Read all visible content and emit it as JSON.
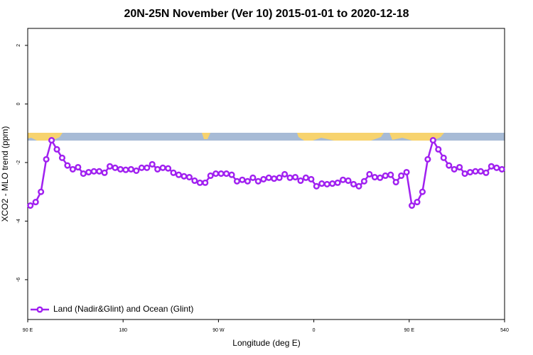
{
  "chart_data": {
    "type": "line",
    "title": "20N-25N November (Ver 10)   2015-01-01 to 2020-12-18",
    "x_label": "Longitude (deg E)",
    "y_label": "XCO2 - MLO trend (ppm)",
    "xlim": [
      90,
      540
    ],
    "xticks": [
      {
        "value": 90,
        "label": "90 E"
      },
      180,
      {
        "value": 270,
        "label": "90 W"
      },
      {
        "value": 360,
        "label": "0"
      },
      {
        "value": 450,
        "label": "90 E"
      },
      540
    ],
    "ylim": [
      -7.36,
      2.58
    ],
    "yticks": [
      -6,
      -4,
      -2,
      0,
      2
    ],
    "legend_position": "bottom-left",
    "x": [
      92.5,
      97.5,
      102.5,
      107.5,
      112.5,
      117.5,
      122.5,
      127.5,
      132.5,
      137.5,
      142.5,
      147.5,
      152.5,
      157.5,
      162.5,
      167.5,
      172.5,
      177.5,
      182.5,
      187.5,
      192.5,
      197.5,
      202.5,
      207.5,
      212.5,
      217.5,
      222.5,
      227.5,
      232.5,
      237.5,
      242.5,
      247.5,
      252.5,
      257.5,
      262.5,
      267.5,
      272.5,
      277.5,
      282.5,
      287.5,
      292.5,
      297.5,
      302.5,
      307.5,
      312.5,
      317.5,
      322.5,
      327.5,
      332.5,
      337.5,
      342.5,
      347.5,
      352.5,
      357.5,
      362.5,
      367.5,
      372.5,
      377.5,
      382.5,
      387.5,
      392.5,
      397.5,
      402.5,
      407.5,
      412.5,
      417.5,
      422.5,
      427.5,
      432.5,
      437.5,
      442.5,
      447.5,
      452.5,
      457.5,
      462.5,
      467.5,
      472.5,
      477.5,
      482.5,
      487.5,
      492.5,
      497.5,
      502.5,
      507.5,
      512.5,
      517.5,
      522.5,
      527.5,
      532.5,
      537.5
    ],
    "series": [
      {
        "name": "Land (Nadir&Glint) and Ocean (Glint)",
        "color": "#a020f0",
        "values": [
          -3.47,
          -3.35,
          -3.0,
          -1.89,
          -1.24,
          -1.55,
          -1.84,
          -2.1,
          -2.23,
          -2.16,
          -2.38,
          -2.33,
          -2.3,
          -2.3,
          -2.35,
          -2.13,
          -2.18,
          -2.23,
          -2.25,
          -2.23,
          -2.28,
          -2.18,
          -2.18,
          -2.06,
          -2.23,
          -2.18,
          -2.2,
          -2.35,
          -2.42,
          -2.47,
          -2.5,
          -2.62,
          -2.69,
          -2.69,
          -2.45,
          -2.38,
          -2.38,
          -2.38,
          -2.42,
          -2.64,
          -2.59,
          -2.64,
          -2.52,
          -2.64,
          -2.57,
          -2.52,
          -2.55,
          -2.52,
          -2.4,
          -2.52,
          -2.5,
          -2.62,
          -2.52,
          -2.57,
          -2.81,
          -2.72,
          -2.74,
          -2.72,
          -2.69,
          -2.59,
          -2.62,
          -2.74,
          -2.81,
          -2.64,
          -2.4,
          -2.5,
          -2.52,
          -2.45,
          -2.42,
          -2.67,
          -2.45,
          -2.33,
          -3.47,
          -3.35,
          -3.0,
          -1.89,
          -1.24,
          -1.55,
          -1.84,
          -2.1,
          -2.23,
          -2.16,
          -2.38,
          -2.33,
          -2.3,
          -2.3,
          -2.35,
          -2.13,
          -2.18,
          -2.23
        ]
      }
    ]
  }
}
